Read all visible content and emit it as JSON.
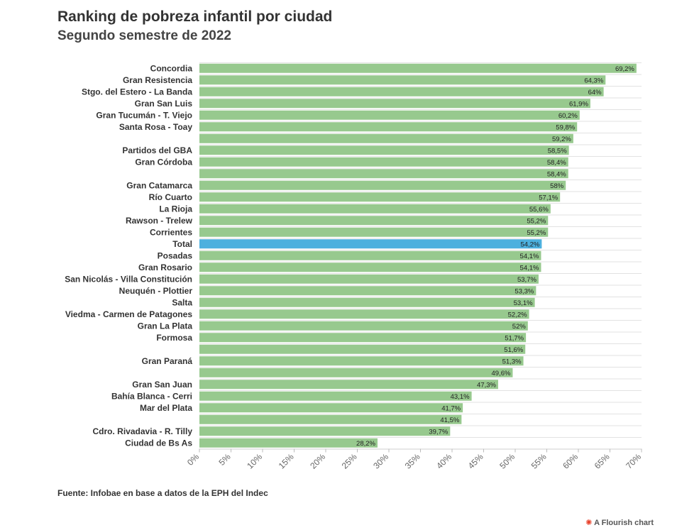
{
  "title": "Ranking de pobreza infantil por ciudad",
  "subtitle": "Segundo semestre de 2022",
  "source": "Fuente: Infobae en base a datos de la EPH del Indec",
  "credit": "A Flourish chart",
  "colors": {
    "bar": "#97c98e",
    "highlight": "#4cb0de",
    "grid": "#e2e2e2"
  },
  "chart_data": {
    "type": "bar",
    "orientation": "horizontal",
    "title": "Ranking de pobreza infantil por ciudad",
    "subtitle": "Segundo semestre de 2022",
    "xlim": [
      0,
      70
    ],
    "ticks": [
      "0%",
      "5%",
      "10%",
      "15%",
      "20%",
      "25%",
      "30%",
      "35%",
      "40%",
      "45%",
      "50%",
      "55%",
      "60%",
      "65%",
      "70%"
    ],
    "tick_values": [
      0,
      5,
      10,
      15,
      20,
      25,
      30,
      35,
      40,
      45,
      50,
      55,
      60,
      65,
      70
    ],
    "highlight": "Total",
    "categories": [
      "Concordia",
      "Gran Resistencia",
      "Stgo. del Estero - La Banda",
      "Gran San Luis",
      "Gran Tucumán - T. Viejo",
      "Santa Rosa - Toay",
      "",
      "Partidos del GBA",
      "Gran Córdoba",
      "",
      "Gran Catamarca",
      "Río Cuarto",
      "La Rioja",
      "Rawson - Trelew",
      "Corrientes",
      "Total",
      "Posadas",
      "Gran Rosario",
      "San Nicolás - Villa Constitución",
      "Neuquén - Plottier",
      "Salta",
      "Viedma - Carmen de Patagones",
      "Gran La Plata",
      "Formosa",
      "",
      "Gran Paraná",
      "",
      "Gran San Juan",
      "Bahía Blanca - Cerri",
      "Mar del Plata",
      "",
      "Cdro. Rivadavia - R. Tilly",
      "Ciudad de Bs As"
    ],
    "values": [
      69.2,
      64.3,
      64,
      61.9,
      60.2,
      59.8,
      59.2,
      58.5,
      58.4,
      58.4,
      58,
      57.1,
      55.6,
      55.2,
      55.2,
      54.2,
      54.1,
      54.1,
      53.7,
      53.3,
      53.1,
      52.2,
      52,
      51.7,
      51.6,
      51.3,
      49.6,
      47.3,
      43.1,
      41.7,
      41.5,
      39.7,
      28.2
    ],
    "value_labels": [
      "69,2%",
      "64,3%",
      "64%",
      "61,9%",
      "60,2%",
      "59,8%",
      "59,2%",
      "58,5%",
      "58,4%",
      "58,4%",
      "58%",
      "57,1%",
      "55,6%",
      "55,2%",
      "55,2%",
      "54,2%",
      "54,1%",
      "54,1%",
      "53,7%",
      "53,3%",
      "53,1%",
      "52,2%",
      "52%",
      "51,7%",
      "51,6%",
      "51,3%",
      "49,6%",
      "47,3%",
      "43,1%",
      "41,7%",
      "41,5%",
      "39,7%",
      "28,2%"
    ]
  }
}
